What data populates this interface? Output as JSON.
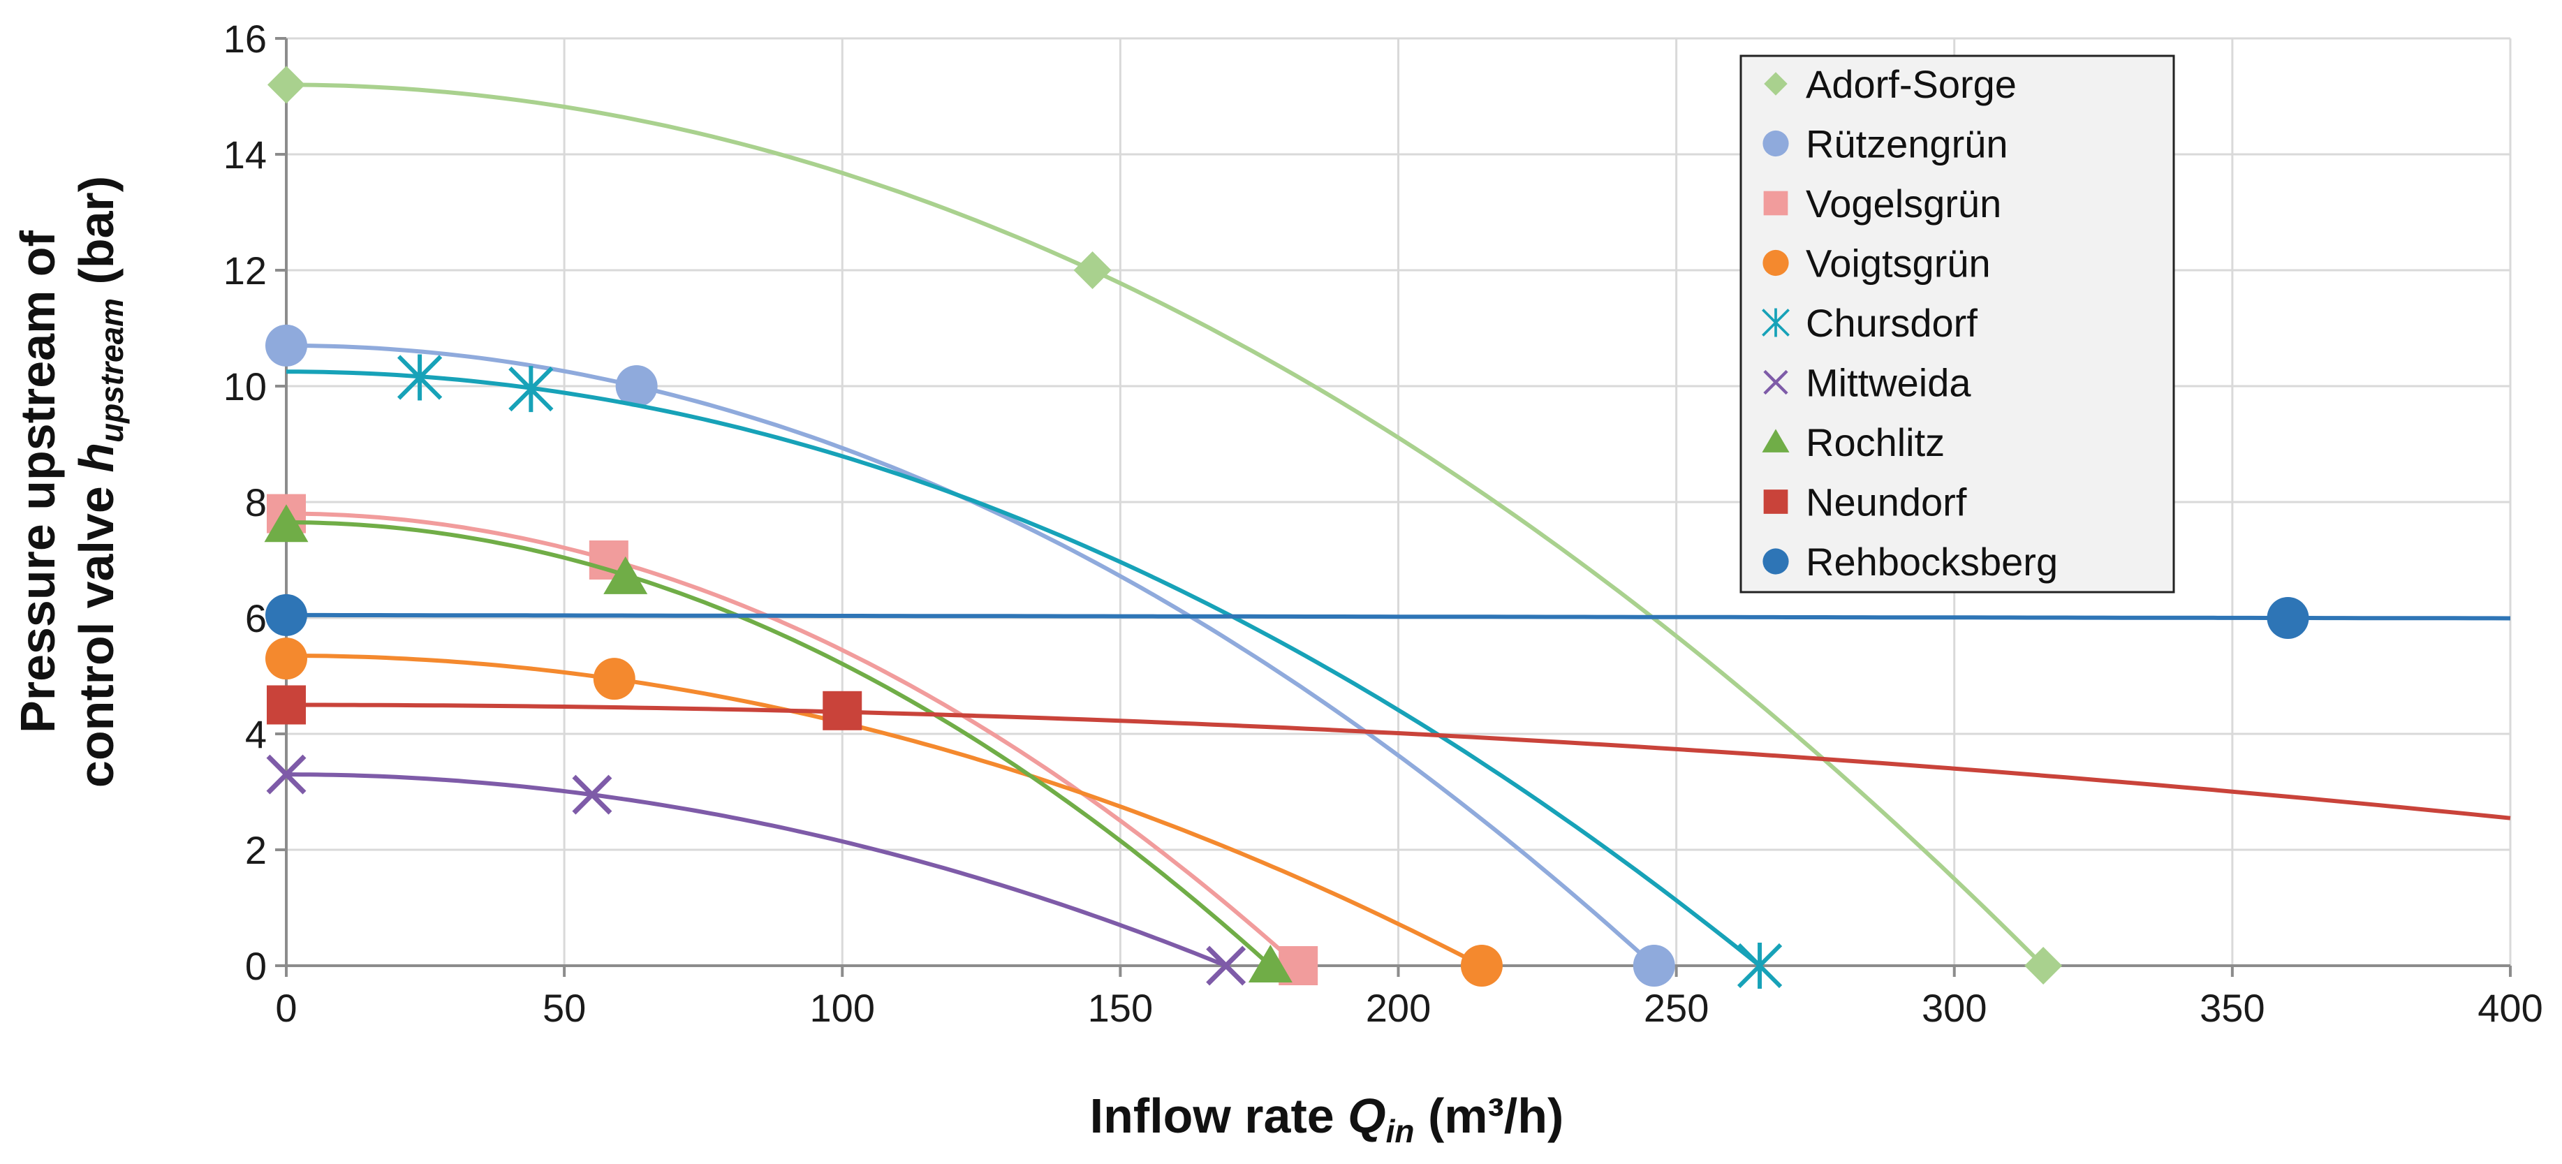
{
  "chart_data": {
    "type": "line",
    "title": "",
    "xlabel": {
      "prefix": "Inflow rate ",
      "symbol": "Q",
      "sub": "in",
      "suffix": " (m³/h)"
    },
    "ylabel": {
      "line1": "Pressure upstream of",
      "line2_prefix": "control valve ",
      "line2_symbol": "h",
      "line2_sub": "upstream",
      "line2_suffix": " (bar)"
    },
    "xlim": [
      0,
      400
    ],
    "ylim": [
      0,
      16
    ],
    "xticks": [
      0,
      50,
      100,
      150,
      200,
      250,
      300,
      350,
      400
    ],
    "yticks": [
      0,
      2,
      4,
      6,
      8,
      10,
      12,
      14,
      16
    ],
    "grid": true,
    "legend_position": "top-right",
    "series": [
      {
        "name": "Adorf-Sorge",
        "color": "#a9d18e",
        "marker": "diamond",
        "points": [
          [
            0,
            15.2
          ],
          [
            145,
            12.0
          ],
          [
            316,
            0
          ]
        ],
        "curve": {
          "type": "quadratic",
          "h0": 15.2,
          "q0": 316
        }
      },
      {
        "name": "Rützengrün",
        "color": "#8faadc",
        "marker": "circle",
        "points": [
          [
            0,
            10.7
          ],
          [
            63,
            10.0
          ],
          [
            246,
            0
          ]
        ],
        "curve": {
          "type": "quadratic",
          "h0": 10.7,
          "q0": 246
        }
      },
      {
        "name": "Vogelsgrün",
        "color": "#f19c9c",
        "marker": "square",
        "points": [
          [
            0,
            7.8
          ],
          [
            58,
            7.0
          ],
          [
            182,
            0
          ]
        ],
        "curve": {
          "type": "quadratic",
          "h0": 7.8,
          "q0": 182
        }
      },
      {
        "name": "Voigtsgrün",
        "color": "#f4892e",
        "marker": "circle",
        "points": [
          [
            0,
            5.3
          ],
          [
            59,
            4.95
          ],
          [
            215,
            0
          ]
        ],
        "curve": {
          "type": "quadratic",
          "h0": 5.35,
          "q0": 215
        }
      },
      {
        "name": "Chursdorf",
        "color": "#17a2b8",
        "marker": "asterisk",
        "points": [
          [
            24,
            10.15
          ],
          [
            44,
            9.95
          ],
          [
            265,
            0
          ]
        ],
        "curve": {
          "type": "quadratic",
          "h0": 10.25,
          "q0": 265
        }
      },
      {
        "name": "Mittweida",
        "color": "#7e5ba8",
        "marker": "x",
        "points": [
          [
            0,
            3.3
          ],
          [
            55,
            2.95
          ],
          [
            169,
            0
          ]
        ],
        "curve": {
          "type": "quadratic",
          "h0": 3.3,
          "q0": 169
        }
      },
      {
        "name": "Rochlitz",
        "color": "#70ad47",
        "marker": "triangle",
        "points": [
          [
            0,
            7.6
          ],
          [
            61,
            6.7
          ],
          [
            177,
            0
          ]
        ],
        "curve": {
          "type": "quadratic",
          "h0": 7.65,
          "q0": 177
        }
      },
      {
        "name": "Neundorf",
        "color": "#c9433a",
        "marker": "square",
        "points": [
          [
            0,
            4.5
          ],
          [
            100,
            4.4
          ]
        ],
        "curve": {
          "type": "quadratic",
          "h0": 4.5,
          "q0": 607
        }
      },
      {
        "name": "Rehbocksberg",
        "color": "#2e75b6",
        "marker": "circle",
        "points": [
          [
            0,
            6.05
          ],
          [
            360,
            6.0
          ]
        ],
        "curve": {
          "type": "linear",
          "h0": 6.05,
          "slope": -0.000139
        }
      }
    ]
  }
}
